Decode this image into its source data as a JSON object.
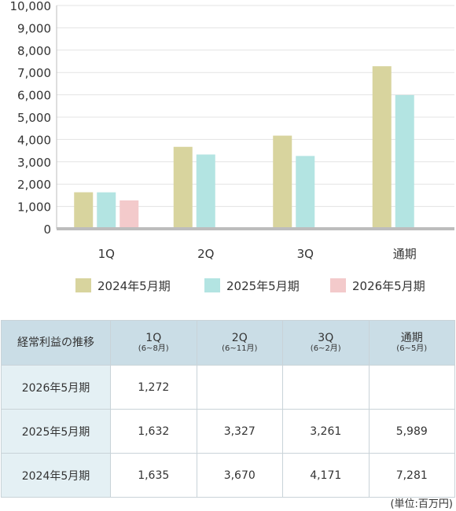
{
  "chart_data": {
    "type": "bar",
    "categories": [
      "1Q",
      "2Q",
      "3Q",
      "通期"
    ],
    "series": [
      {
        "name": "2024年5月期",
        "color": "#d8d49e",
        "values": [
          1635,
          3670,
          4171,
          7281
        ]
      },
      {
        "name": "2025年5月期",
        "color": "#b3e4e2",
        "values": [
          1632,
          3327,
          3261,
          5989
        ]
      },
      {
        "name": "2026年5月期",
        "color": "#f3cacb",
        "values": [
          1272,
          null,
          null,
          null
        ]
      }
    ],
    "yticks": [
      "10,000",
      "9,000",
      "8,000",
      "7,000",
      "6,000",
      "5,000",
      "4,000",
      "3,000",
      "2,000",
      "1,000",
      "0"
    ],
    "ylim": [
      0,
      10000
    ],
    "grid": true,
    "legend_position": "bottom"
  },
  "table": {
    "corner": "経常利益の推移",
    "columns": [
      {
        "label": "1Q",
        "sub": "(6~8月)"
      },
      {
        "label": "2Q",
        "sub": "(6~11月)"
      },
      {
        "label": "3Q",
        "sub": "(6~2月)"
      },
      {
        "label": "通期",
        "sub": "(6~5月)"
      }
    ],
    "rows": [
      {
        "label": "2026年5月期",
        "cells": [
          "1,272",
          "",
          "",
          ""
        ]
      },
      {
        "label": "2025年5月期",
        "cells": [
          "1,632",
          "3,327",
          "3,261",
          "5,989"
        ]
      },
      {
        "label": "2024年5月期",
        "cells": [
          "1,635",
          "3,670",
          "4,171",
          "7,281"
        ]
      }
    ],
    "unit_note": "(単位:百万円)"
  }
}
